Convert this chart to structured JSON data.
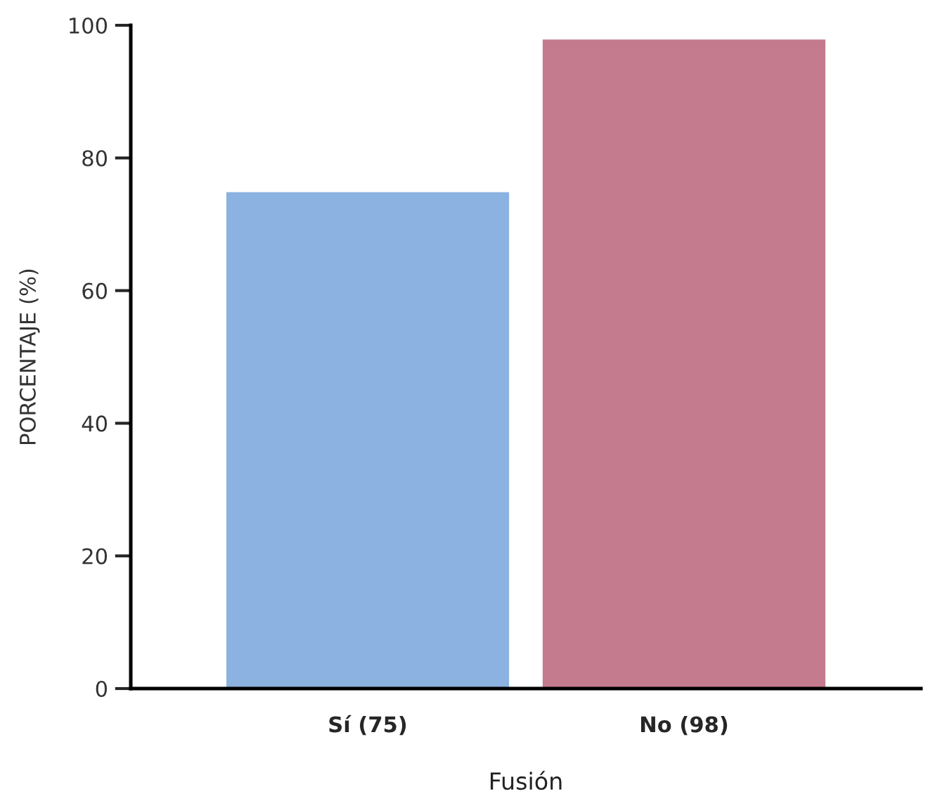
{
  "chart_data": {
    "type": "bar",
    "xlabel": "Fusión",
    "ylabel": "PORCENTAJE (%)",
    "categories": [
      "Sí (75)",
      "No (98)"
    ],
    "values": [
      75,
      98
    ],
    "colors": [
      "#8bb2e0",
      "#c47b8e"
    ],
    "ylim": [
      0,
      100
    ],
    "yticks": [
      0,
      20,
      40,
      60,
      80,
      100
    ],
    "grid": false
  }
}
